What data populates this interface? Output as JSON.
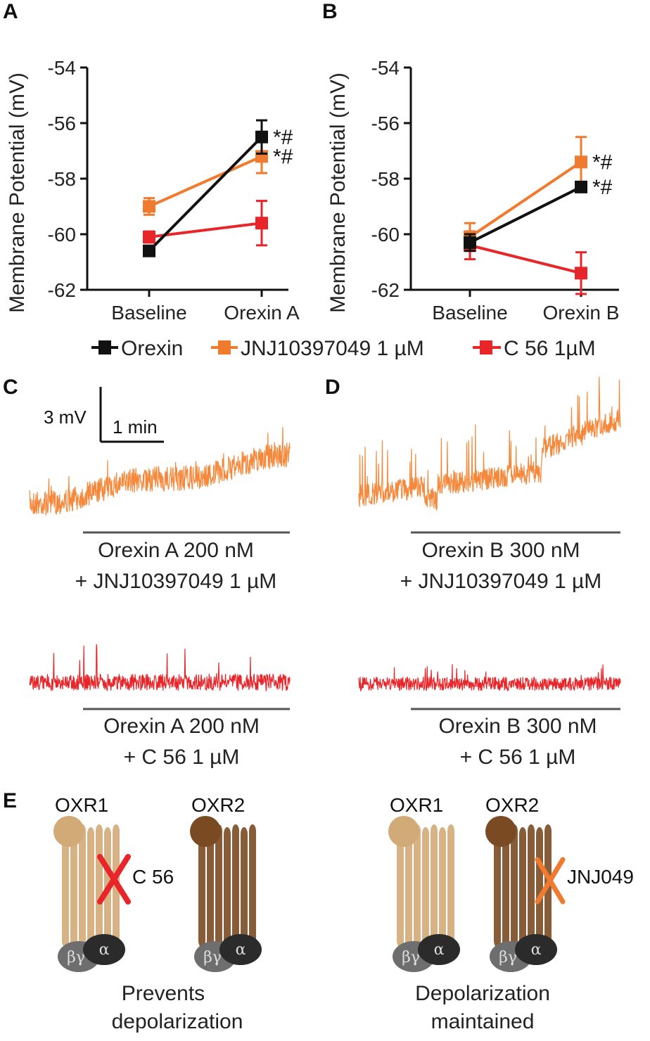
{
  "colors": {
    "orexin": "#111111",
    "jnj": "#f07a2e",
    "c56": "#e8262a",
    "trace_jnj": "#f5883a",
    "trace_c56": "#e8262a",
    "receptor_light": "#d2aa78",
    "receptor_dark": "#7a4a22",
    "alpha": "#2b2b2b",
    "betagamma": "#6e6e6e"
  },
  "panels": {
    "a": "A",
    "b": "B",
    "c": "C",
    "d": "D",
    "e": "E"
  },
  "legend": {
    "orexin": "Orexin",
    "jnj": "JNJ10397049 1 µM",
    "c56": "C 56 1µM"
  },
  "chart_data": [
    {
      "type": "line",
      "panel": "A",
      "ylabel": "Membrane Potential (mV)",
      "xlabel": "",
      "categories": [
        "Baseline",
        "Orexin A"
      ],
      "ylim": [
        -62,
        -54
      ],
      "yticks": [
        -54,
        -56,
        -58,
        -60,
        -62
      ],
      "series": [
        {
          "name": "Orexin",
          "color": "#111111",
          "values": [
            -60.6,
            -56.5
          ],
          "errors": [
            0.1,
            0.6
          ]
        },
        {
          "name": "JNJ10397049 1 µM",
          "color": "#f07a2e",
          "values": [
            -59.0,
            -57.2
          ],
          "errors": [
            0.3,
            0.6
          ]
        },
        {
          "name": "C 56 1µM",
          "color": "#e8262a",
          "values": [
            -60.1,
            -59.6
          ],
          "errors": [
            0.2,
            0.8
          ]
        }
      ],
      "annotations": [
        "*#",
        "*#"
      ]
    },
    {
      "type": "line",
      "panel": "B",
      "ylabel": "Membrane Potential (mV)",
      "xlabel": "",
      "categories": [
        "Baseline",
        "Orexin B"
      ],
      "ylim": [
        -62,
        -54
      ],
      "yticks": [
        -54,
        -56,
        -58,
        -60,
        -62
      ],
      "series": [
        {
          "name": "Orexin",
          "color": "#111111",
          "values": [
            -60.3,
            -58.3
          ],
          "errors": [
            0.3,
            0.15
          ]
        },
        {
          "name": "JNJ10397049 1 µM",
          "color": "#f07a2e",
          "values": [
            -60.1,
            -57.4
          ],
          "errors": [
            0.5,
            0.9
          ]
        },
        {
          "name": "C 56 1µM",
          "color": "#e8262a",
          "values": [
            -60.4,
            -61.4
          ],
          "errors": [
            0.5,
            0.75
          ]
        }
      ],
      "annotations": [
        "*#",
        "*#"
      ]
    }
  ],
  "traces": {
    "scale": {
      "mv": "3 mV",
      "time": "1 min"
    },
    "c_top": {
      "line1": "Orexin A 200 nM",
      "line2": "+ JNJ10397049 1 µM"
    },
    "c_bottom": {
      "line1": "Orexin A 200 nM",
      "line2": "+ C 56 1 µM"
    },
    "d_top": {
      "line1": "Orexin B 300 nM",
      "line2": "+ JNJ10397049 1 µM"
    },
    "d_bottom": {
      "line1": "Orexin B 300 nM",
      "line2": "+ C 56 1 µM"
    }
  },
  "schematic": {
    "left": {
      "r1": "OXR1",
      "r2": "OXR2",
      "drug": "C 56",
      "line1": "Prevents",
      "line2": "depolarization"
    },
    "right": {
      "r1": "OXR1",
      "r2": "OXR2",
      "drug": "JNJ049",
      "line1": "Depolarization",
      "line2": "maintained"
    },
    "alpha": "α",
    "betagamma": "βγ"
  }
}
